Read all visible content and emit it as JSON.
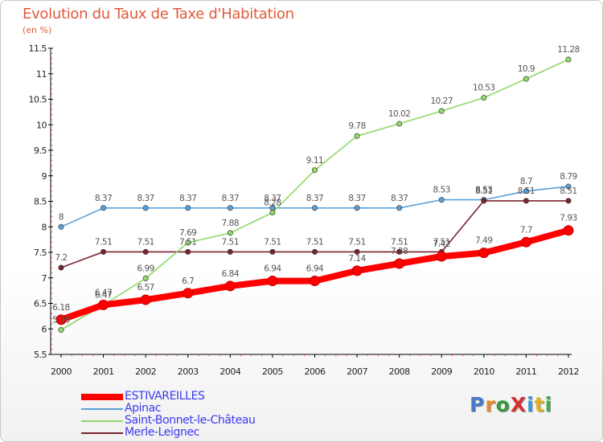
{
  "title": "Evolution du Taux de Taxe d'Habitation",
  "subtitle": "(en %)",
  "logo": {
    "text": "ProXiti",
    "letter_colors": [
      "#4a78c8",
      "#e88a2a",
      "#3a9a3a",
      "#d83030",
      "#3a9ad8",
      "#e0b020",
      "#3ab040"
    ]
  },
  "chart_data": {
    "type": "line",
    "title": "Evolution du Taux de Taxe d'Habitation",
    "ylabel": "(en %)",
    "xlabel": "",
    "x": [
      "2000",
      "2001",
      "2002",
      "2003",
      "2004",
      "2005",
      "2006",
      "2007",
      "2008",
      "2009",
      "2010",
      "2011",
      "2012"
    ],
    "ylim": [
      5.5,
      11.5
    ],
    "yticks": [
      "5.5",
      "6",
      "6.5",
      "7",
      "7.5",
      "8",
      "8.5",
      "9",
      "9.5",
      "10",
      "10.5",
      "11",
      "11.5"
    ],
    "grid": false,
    "legend_position": "bottom-left",
    "series": [
      {
        "name": "ESTIVAREILLES",
        "color": "#ff0000",
        "values": [
          6.18,
          6.47,
          6.57,
          6.7,
          6.84,
          6.94,
          6.94,
          7.14,
          7.28,
          7.42,
          7.49,
          7.7,
          7.93
        ],
        "labels": [
          "6.18",
          "6.47",
          "6.57",
          "6.7",
          "6.84",
          "6.94",
          "6.94",
          "7.14",
          "7.28",
          "7.42",
          "7.49",
          "7.7",
          "7.93"
        ]
      },
      {
        "name": "Apinac",
        "color": "#5aa0d8",
        "values": [
          8,
          8.37,
          8.37,
          8.37,
          8.37,
          8.37,
          8.37,
          8.37,
          8.37,
          8.53,
          8.53,
          8.7,
          8.79
        ],
        "labels": [
          "8",
          "8.37",
          "8.37",
          "8.37",
          "8.37",
          "8.37",
          "8.37",
          "8.37",
          "8.37",
          "8.53",
          "8.53",
          "8.7",
          "8.79"
        ]
      },
      {
        "name": "Saint-Bonnet-le-Château",
        "color": "#8fd86a",
        "values": [
          5.98,
          6.47,
          6.99,
          7.69,
          7.88,
          8.28,
          9.11,
          9.78,
          10.02,
          10.27,
          10.53,
          10.9,
          11.28
        ],
        "labels": [
          "5.98",
          "6.47",
          "6.99",
          "7.69",
          "7.88",
          "8.28",
          "9.11",
          "9.78",
          "10.02",
          "10.27",
          "10.53",
          "10.9",
          "11.28"
        ]
      },
      {
        "name": "Merle-Leignec",
        "color": "#7a2430",
        "values": [
          7.2,
          7.51,
          7.51,
          7.51,
          7.51,
          7.51,
          7.51,
          7.51,
          7.51,
          7.51,
          8.51,
          8.51,
          8.51
        ],
        "labels": [
          "7.2",
          "7.51",
          "7.51",
          "7.51",
          "7.51",
          "7.51",
          "7.51",
          "7.51",
          "7.51",
          "7.51",
          "8.51",
          "8.51",
          "8.51"
        ]
      }
    ]
  }
}
